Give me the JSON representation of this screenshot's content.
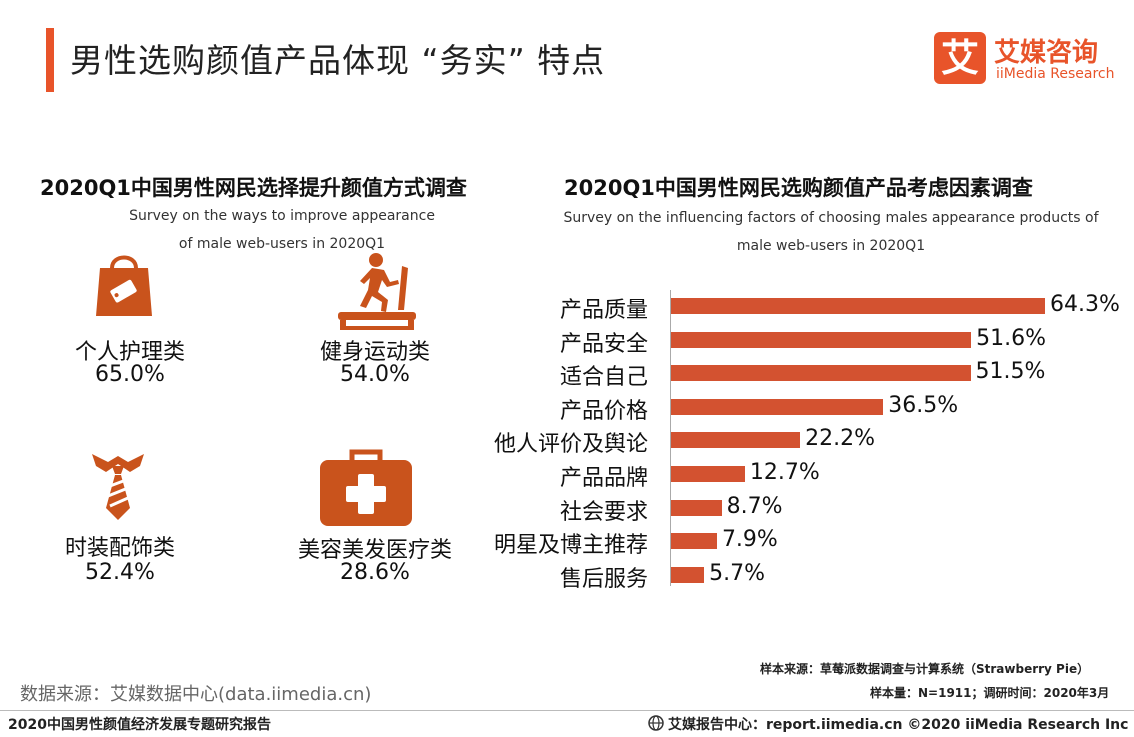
{
  "header": {
    "title": "男性选购颜值产品体现 “务实” 特点",
    "logo_mark": "艾",
    "logo_cn": "艾媒咨询",
    "logo_en": "iiMedia Research"
  },
  "left_section": {
    "title": "2020Q1中国男性网民选择提升颜值方式调查",
    "subtitle_line1": "Survey on the ways to improve appearance",
    "subtitle_line2": "of male web-users in 2020Q1",
    "items": [
      {
        "label": "个人护理类",
        "value": "65.0%",
        "icon": "shopping-bag-icon"
      },
      {
        "label": "健身运动类",
        "value": "54.0%",
        "icon": "treadmill-icon"
      },
      {
        "label": "时装配饰类",
        "value": "52.4%",
        "icon": "necktie-icon"
      },
      {
        "label": "美容美发医疗类",
        "value": "28.6%",
        "icon": "medical-kit-icon"
      }
    ]
  },
  "chart_data": {
    "type": "bar",
    "orientation": "horizontal",
    "title": "2020Q1中国男性网民选购颜值产品考虑因素调查",
    "subtitle_line1": "Survey on the influencing factors of choosing males appearance products of",
    "subtitle_line2": "male web-users in 2020Q1",
    "categories": [
      "产品质量",
      "产品安全",
      "适合自己",
      "产品价格",
      "他人评价及舆论",
      "产品品牌",
      "社会要求",
      "明星及博主推荐",
      "售后服务"
    ],
    "values": [
      64.3,
      51.6,
      51.5,
      36.5,
      22.2,
      12.7,
      8.7,
      7.9,
      5.7
    ],
    "value_labels": [
      "64.3%",
      "51.6%",
      "51.5%",
      "36.5%",
      "22.2%",
      "12.7%",
      "8.7%",
      "7.9%",
      "5.7%"
    ],
    "bar_color": "#d35230",
    "grid": false
  },
  "notes": {
    "sample_source": "样本来源：草莓派数据调查与计算系统（Strawberry Pie）",
    "sample_size": "样本量：N=1911；调研时间：2020年3月",
    "data_source": "数据来源：艾媒数据中心(data.iimedia.cn)"
  },
  "footer": {
    "left": "2020中国男性颜值经济发展专题研究报告",
    "right": "艾媒报告中心：report.iimedia.cn ©2020 iiMedia Research Inc"
  },
  "colors": {
    "accent": "#e8542a",
    "icon": "#c9531c",
    "bar": "#d35230"
  }
}
